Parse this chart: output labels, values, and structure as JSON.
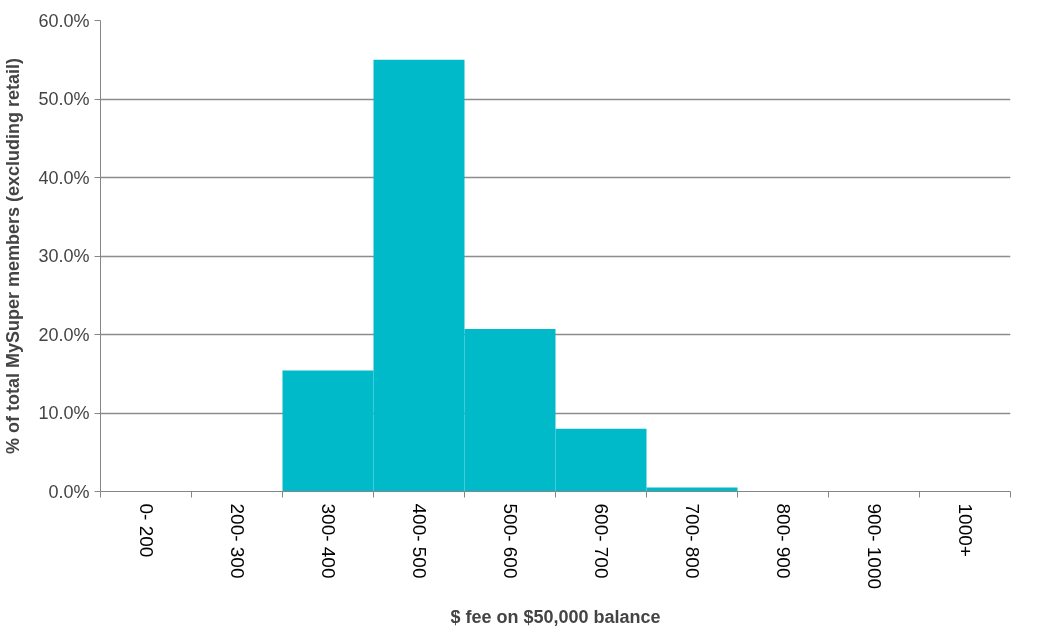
{
  "chart_data": {
    "type": "bar",
    "xlabel": "$ fee on $50,000 balance",
    "ylabel": "% of total MySuper members (excluding retail)",
    "categories": [
      "0- 200",
      "200- 300",
      "300- 400",
      "400- 500",
      "500- 600",
      "600- 700",
      "700- 800",
      "800- 900",
      "900- 1000",
      "1000+"
    ],
    "values": [
      0,
      0,
      15.4,
      55.0,
      20.7,
      8.0,
      0.5,
      0,
      0,
      0
    ],
    "color": "#00b9c9",
    "ylim": [
      0,
      60
    ],
    "yticks": [
      {
        "value": 0,
        "label": "0.0%"
      },
      {
        "value": 10,
        "label": "10.0%"
      },
      {
        "value": 20,
        "label": "20.0%"
      },
      {
        "value": 30,
        "label": "30.0%"
      },
      {
        "value": 40,
        "label": "40.0%"
      },
      {
        "value": 50,
        "label": "50.0%"
      },
      {
        "value": 60,
        "label": "60.0%"
      }
    ],
    "grid": "y"
  }
}
